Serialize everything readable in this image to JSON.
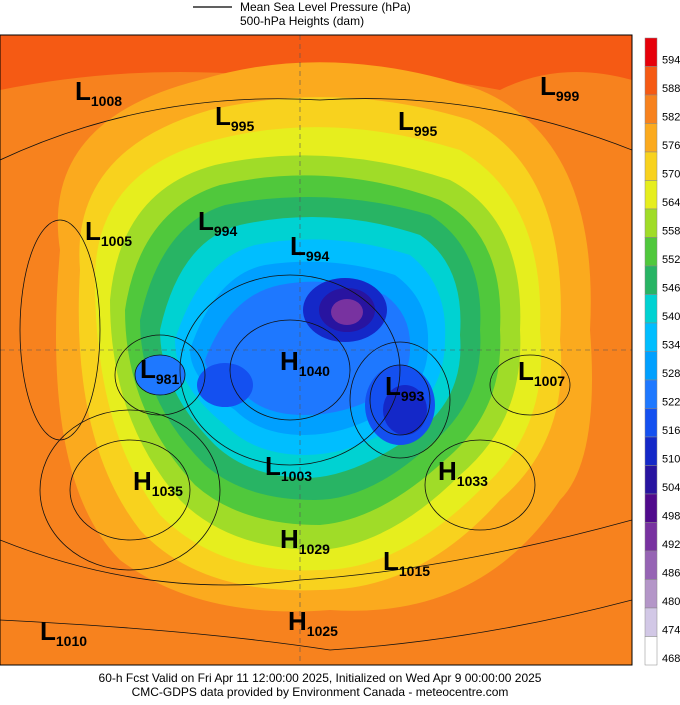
{
  "legend": {
    "line_label": "Mean Sea Level Pressure (hPa)",
    "fill_label": "500-hPa Heights (dam)"
  },
  "systems": [
    {
      "type": "L",
      "pressure": 1008
    },
    {
      "type": "L",
      "pressure": 995
    },
    {
      "type": "L",
      "pressure": 995
    },
    {
      "type": "L",
      "pressure": 999
    },
    {
      "type": "L",
      "pressure": 1005
    },
    {
      "type": "L",
      "pressure": 994
    },
    {
      "type": "L",
      "pressure": 994
    },
    {
      "type": "H",
      "pressure": 1040
    },
    {
      "type": "L",
      "pressure": 981
    },
    {
      "type": "L",
      "pressure": 993
    },
    {
      "type": "L",
      "pressure": 1007
    },
    {
      "type": "L",
      "pressure": 1003
    },
    {
      "type": "H",
      "pressure": 1033
    },
    {
      "type": "H",
      "pressure": 1035
    },
    {
      "type": "H",
      "pressure": 1029
    },
    {
      "type": "L",
      "pressure": 1015
    },
    {
      "type": "L",
      "pressure": 1010
    },
    {
      "type": "H",
      "pressure": 1025
    }
  ],
  "colorbar": {
    "levels": [
      594,
      588,
      582,
      576,
      570,
      564,
      558,
      552,
      546,
      540,
      534,
      528,
      522,
      516,
      510,
      504,
      498,
      492,
      486,
      480,
      474,
      468
    ],
    "colors": [
      "#e6000a",
      "#f55a14",
      "#f7821e",
      "#fbaa1e",
      "#f8d21e",
      "#e6ee1e",
      "#a0dc28",
      "#50c83c",
      "#28b464",
      "#00d2d2",
      "#00beff",
      "#00a0ff",
      "#1e78ff",
      "#1450f0",
      "#1428c8",
      "#2814a0",
      "#500a8c",
      "#7832a0",
      "#9664b4",
      "#b496c8",
      "#d2c8e6",
      "#ffffff"
    ]
  },
  "footer": {
    "line1": "60-h Fcst Valid on Fri Apr 11 12:00:00 2025, Initialized on Wed Apr  9 00:00:00 2025",
    "line2": "CMC-GDPS data provided by Environment Canada - meteocentre.com"
  }
}
